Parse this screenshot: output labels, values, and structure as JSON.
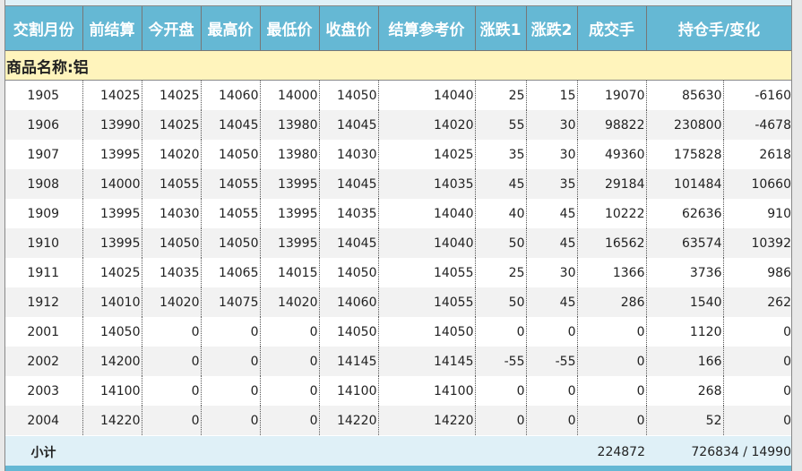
{
  "headers": [
    "交割月份",
    "前结算",
    "今开盘",
    "最高价",
    "最低价",
    "收盘价",
    "结算参考价",
    "涨跌1",
    "涨跌2",
    "成交手",
    "持仓手/变化"
  ],
  "section_title": "商品名称:铝",
  "rows": [
    [
      "1905",
      "14025",
      "14025",
      "14060",
      "14000",
      "14050",
      "14040",
      "25",
      "15",
      "19070",
      "85630",
      "-6160"
    ],
    [
      "1906",
      "13990",
      "14025",
      "14045",
      "13980",
      "14045",
      "14020",
      "55",
      "30",
      "98822",
      "230800",
      "-4678"
    ],
    [
      "1907",
      "13995",
      "14020",
      "14050",
      "13980",
      "14030",
      "14025",
      "35",
      "30",
      "49360",
      "175828",
      "2618"
    ],
    [
      "1908",
      "14000",
      "14055",
      "14055",
      "13995",
      "14045",
      "14035",
      "45",
      "35",
      "29184",
      "101484",
      "10660"
    ],
    [
      "1909",
      "13995",
      "14030",
      "14055",
      "13995",
      "14035",
      "14040",
      "40",
      "45",
      "10222",
      "62636",
      "910"
    ],
    [
      "1910",
      "13995",
      "14050",
      "14050",
      "13995",
      "14045",
      "14040",
      "50",
      "45",
      "16562",
      "63574",
      "10392"
    ],
    [
      "1911",
      "14025",
      "14035",
      "14065",
      "14015",
      "14050",
      "14055",
      "25",
      "30",
      "1366",
      "3736",
      "986"
    ],
    [
      "1912",
      "14010",
      "14020",
      "14075",
      "14020",
      "14060",
      "14055",
      "50",
      "45",
      "286",
      "1540",
      "262"
    ],
    [
      "2001",
      "14050",
      "0",
      "0",
      "0",
      "14050",
      "14050",
      "0",
      "0",
      "0",
      "1120",
      "0"
    ],
    [
      "2002",
      "14200",
      "0",
      "0",
      "0",
      "14145",
      "14145",
      "-55",
      "-55",
      "0",
      "166",
      "0"
    ],
    [
      "2003",
      "14100",
      "0",
      "0",
      "0",
      "14100",
      "14100",
      "0",
      "0",
      "0",
      "268",
      "0"
    ],
    [
      "2004",
      "14220",
      "0",
      "0",
      "0",
      "14220",
      "14220",
      "0",
      "0",
      "0",
      "52",
      "0"
    ]
  ],
  "subtotal": {
    "label": "小计",
    "volume": "224872",
    "open_interest": "726834 / 14990"
  }
}
